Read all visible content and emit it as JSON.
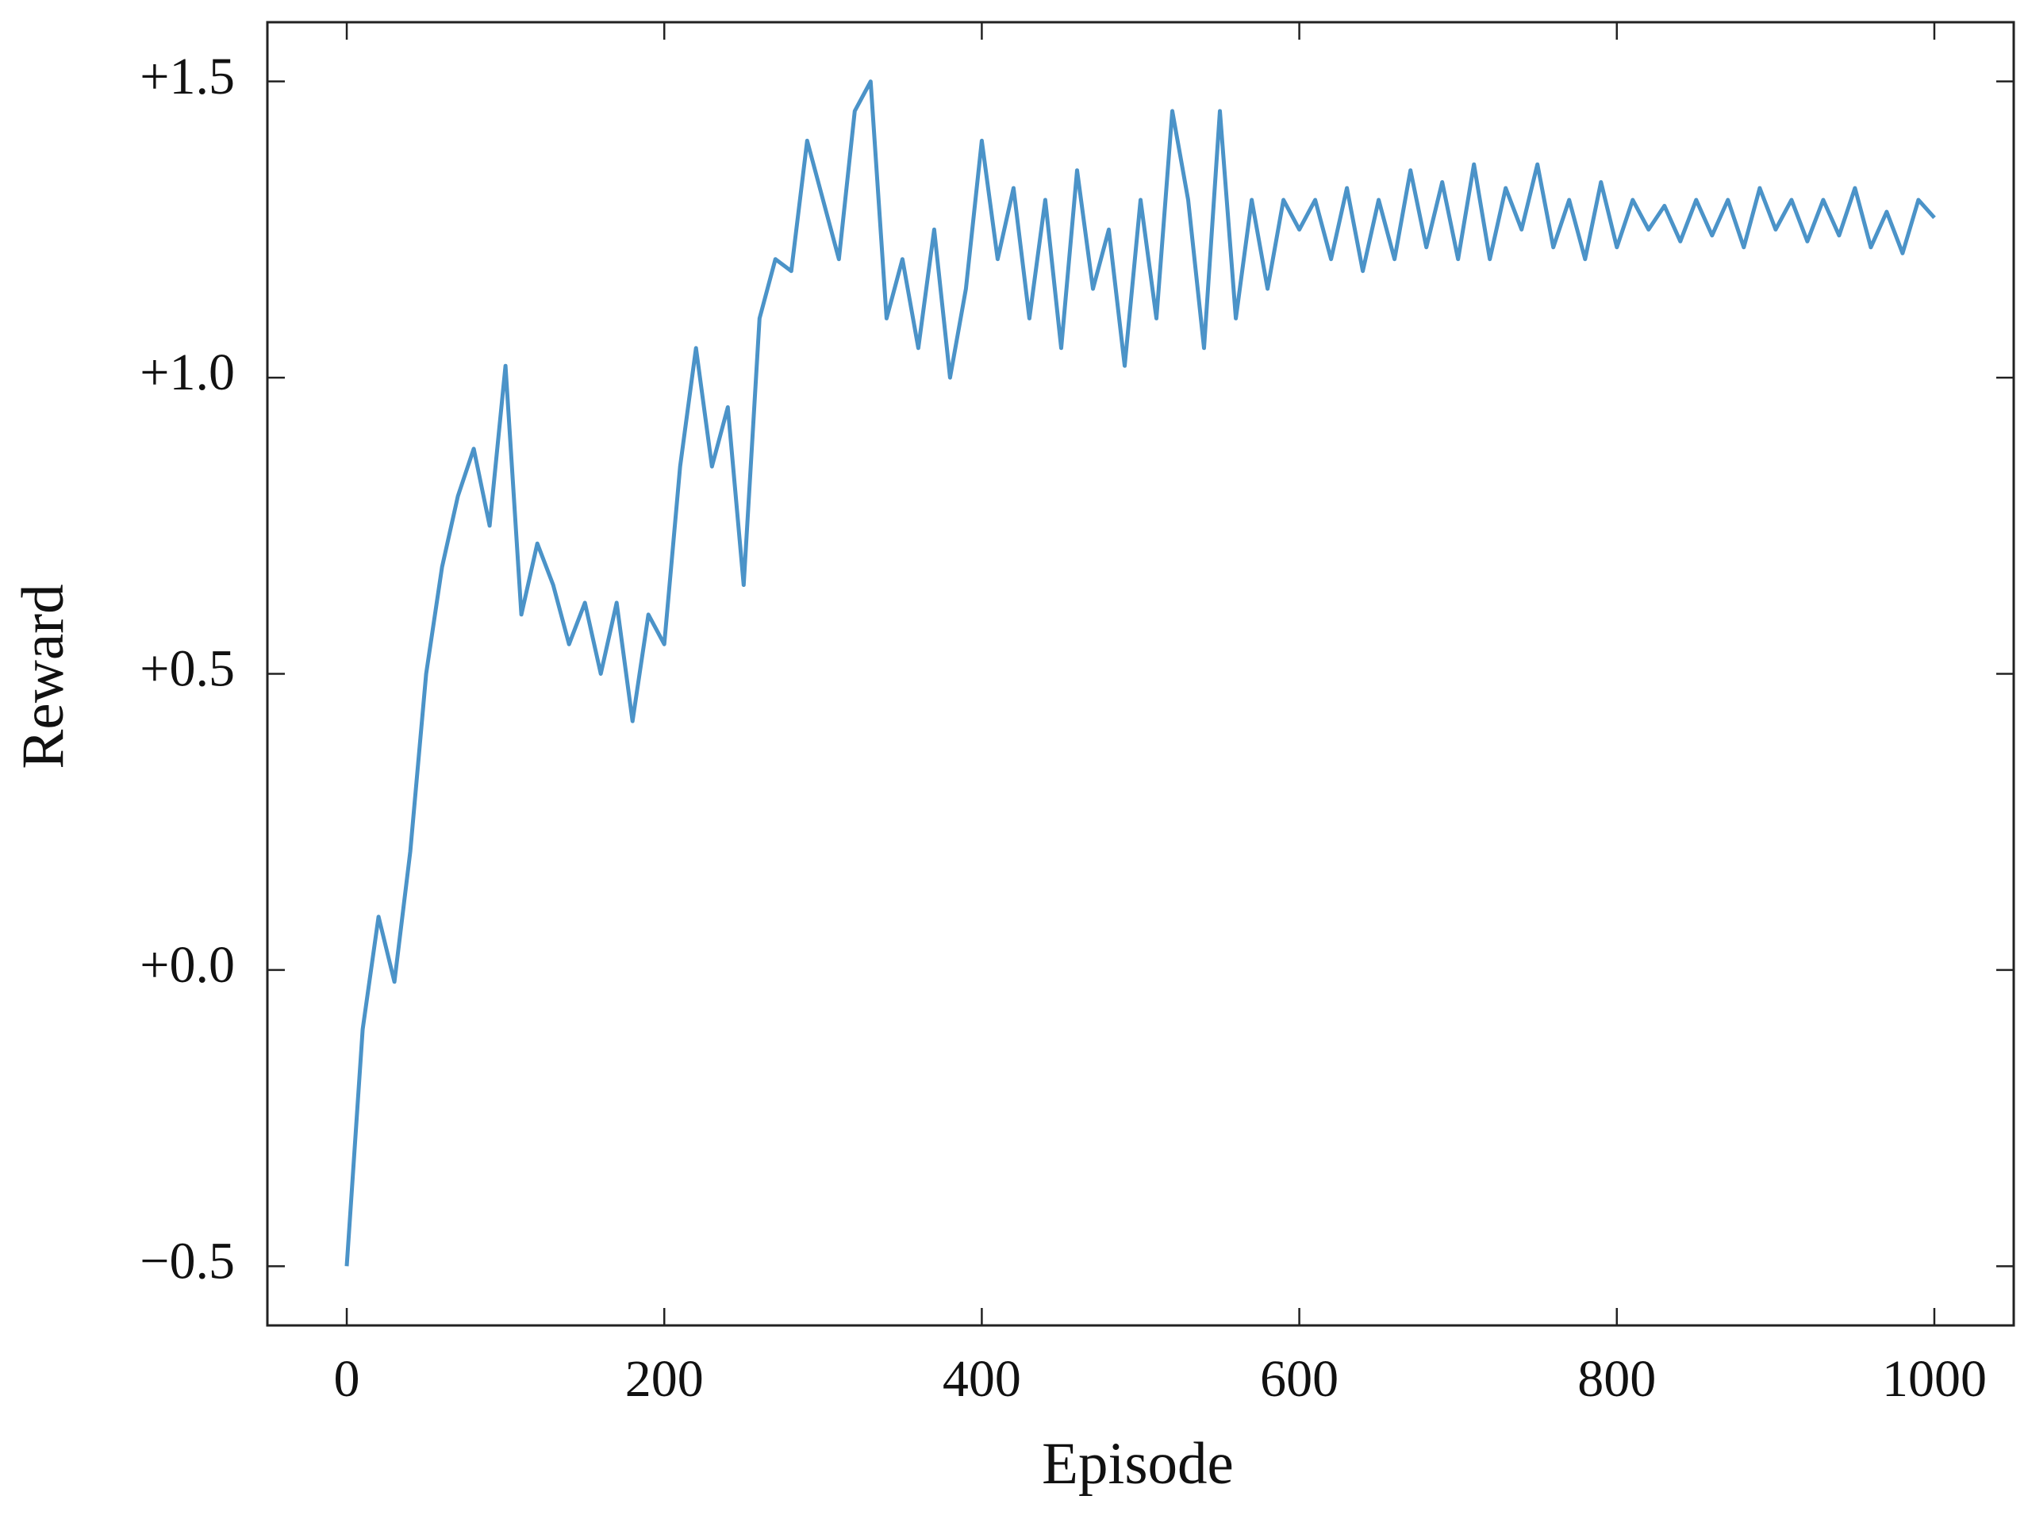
{
  "chart_data": {
    "type": "line",
    "xlabel": "Episode",
    "ylabel": "Reward",
    "x": [
      0,
      10,
      20,
      30,
      40,
      50,
      60,
      70,
      80,
      90,
      100,
      110,
      120,
      130,
      140,
      150,
      160,
      170,
      180,
      190,
      200,
      210,
      220,
      230,
      240,
      250,
      260,
      270,
      280,
      290,
      300,
      310,
      320,
      330,
      340,
      350,
      360,
      370,
      380,
      390,
      400,
      410,
      420,
      430,
      440,
      450,
      460,
      470,
      480,
      490,
      500,
      510,
      520,
      530,
      540,
      550,
      560,
      570,
      580,
      590,
      600,
      610,
      620,
      630,
      640,
      650,
      660,
      670,
      680,
      690,
      700,
      710,
      720,
      730,
      740,
      750,
      760,
      770,
      780,
      790,
      800,
      810,
      820,
      830,
      840,
      850,
      860,
      870,
      880,
      890,
      900,
      910,
      920,
      930,
      940,
      950,
      960,
      970,
      980,
      990,
      1000
    ],
    "values": [
      -0.5,
      -0.1,
      0.09,
      -0.02,
      0.2,
      0.5,
      0.68,
      0.8,
      0.88,
      0.75,
      1.02,
      0.6,
      0.72,
      0.65,
      0.55,
      0.62,
      0.5,
      0.62,
      0.42,
      0.6,
      0.55,
      0.85,
      1.05,
      0.85,
      0.95,
      0.65,
      1.1,
      1.2,
      1.18,
      1.4,
      1.3,
      1.2,
      1.45,
      1.5,
      1.1,
      1.2,
      1.05,
      1.25,
      1.0,
      1.15,
      1.4,
      1.2,
      1.32,
      1.1,
      1.3,
      1.05,
      1.35,
      1.15,
      1.25,
      1.02,
      1.3,
      1.1,
      1.45,
      1.3,
      1.05,
      1.45,
      1.1,
      1.3,
      1.15,
      1.3,
      1.25,
      1.3,
      1.2,
      1.32,
      1.18,
      1.3,
      1.2,
      1.35,
      1.22,
      1.33,
      1.2,
      1.36,
      1.2,
      1.32,
      1.25,
      1.36,
      1.22,
      1.3,
      1.2,
      1.33,
      1.22,
      1.3,
      1.25,
      1.29,
      1.23,
      1.3,
      1.24,
      1.3,
      1.22,
      1.32,
      1.25,
      1.3,
      1.23,
      1.3,
      1.24,
      1.32,
      1.22,
      1.28,
      1.21,
      1.3,
      1.27
    ],
    "color": "#4b93c8",
    "xlim": [
      -50,
      1050
    ],
    "xticks": [
      0,
      200,
      400,
      600,
      800,
      1000
    ],
    "ylim": [
      -0.6,
      1.6
    ],
    "yticks": [
      {
        "value": -0.5,
        "label": "−0.5"
      },
      {
        "value": 0.0,
        "label": "+0.0"
      },
      {
        "value": 0.5,
        "label": "+0.5"
      },
      {
        "value": 1.0,
        "label": "+1.0"
      },
      {
        "value": 1.5,
        "label": "+1.5"
      }
    ],
    "grid": false
  }
}
